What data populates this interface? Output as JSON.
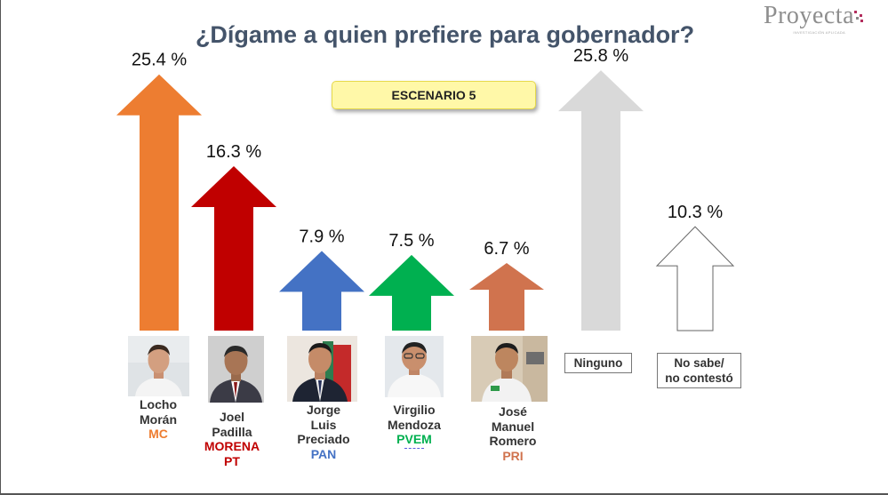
{
  "title": "¿Dígame a quien prefiere para gobernador?",
  "scenario_label": "ESCENARIO 5",
  "logo": {
    "text": "Proyecta",
    "tagline": "INVESTIGACIÓN APLICADA"
  },
  "candidates": [
    {
      "name_lines": [
        "Locho",
        "Morán"
      ],
      "party_lines": [
        "MC"
      ],
      "party_color": "#ed7d31",
      "arrow_color": "#ed7d31"
    },
    {
      "name_lines": [
        "Joel",
        "Padilla"
      ],
      "party_lines": [
        "MORENA",
        "PT"
      ],
      "party_color": "#c00000",
      "arrow_color": "#c00000"
    },
    {
      "name_lines": [
        "Jorge",
        "Luis",
        "Preciado"
      ],
      "party_lines": [
        "PAN"
      ],
      "party_color": "#4472c4",
      "arrow_color": "#4472c4"
    },
    {
      "name_lines": [
        "Virgilio",
        "Mendoza"
      ],
      "party_lines": [
        "PVEM"
      ],
      "party_color": "#00b050",
      "arrow_color": "#00b050"
    },
    {
      "name_lines": [
        "José",
        "Manuel",
        "Romero"
      ],
      "party_lines": [
        "PRI"
      ],
      "party_color": "#d0734e",
      "arrow_color": "#d0734e"
    }
  ],
  "others": [
    {
      "label_lines": [
        "Ninguno"
      ],
      "arrow_color": "#d9d9d9"
    },
    {
      "label_lines": [
        "No sabe/",
        "no contestó"
      ],
      "arrow_color": "#ffffff"
    }
  ],
  "chart_data": {
    "type": "bar",
    "categories": [
      "Locho Morán MC",
      "Joel Padilla MORENA PT",
      "Jorge Luis Preciado PAN",
      "Virgilio Mendoza PVEM",
      "José Manuel Romero PRI",
      "Ninguno",
      "No sabe/ no contestó"
    ],
    "values": [
      25.4,
      16.3,
      7.9,
      7.5,
      6.7,
      25.8,
      10.3
    ],
    "value_labels": [
      "25.4 %",
      "16.3 %",
      "7.9 %",
      "7.5 %",
      "6.7 %",
      "25.8 %",
      "10.3 %"
    ],
    "colors": [
      "#ed7d31",
      "#c00000",
      "#4472c4",
      "#00b050",
      "#d0734e",
      "#d9d9d9",
      "#ffffff"
    ],
    "title": "¿Dígame a quien prefiere para gobernador?",
    "xlabel": "",
    "ylabel": "",
    "grid": false
  }
}
